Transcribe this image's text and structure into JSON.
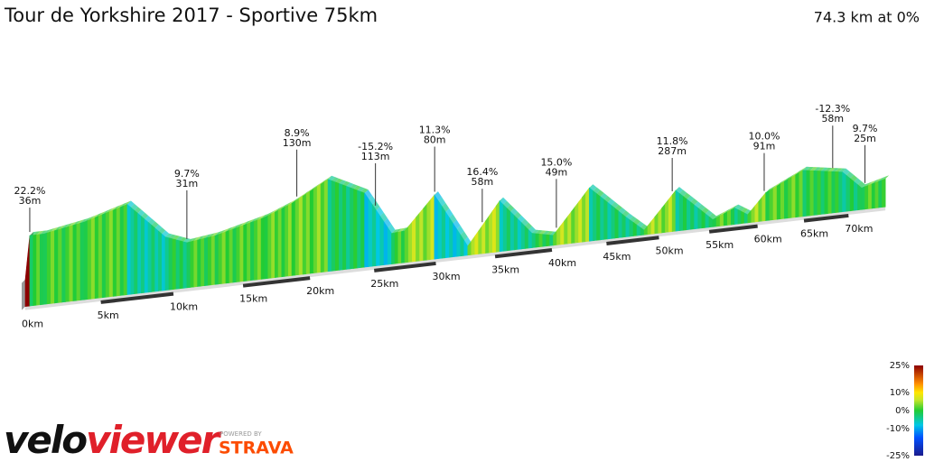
{
  "chart_data": {
    "type": "elevation-profile",
    "title": "Tour de Yorkshire 2017 - Sportive 75km",
    "summary": "74.3 km at 0%",
    "x": [
      0,
      0.29,
      1.18,
      3.87,
      6.8,
      9.43,
      10.95,
      12.96,
      16.59,
      18.62,
      21.38,
      24.24,
      26.39,
      27.45,
      29.88,
      32.67,
      35.39,
      38.23,
      40.12,
      43.4,
      46.82,
      48.57,
      51.64,
      55.35,
      57.6,
      58.97,
      60.86,
      64.88,
      69.3,
      71.5,
      74.3
    ],
    "values": [
      90,
      234,
      234,
      258,
      300,
      177,
      150,
      162,
      204,
      240,
      306,
      246,
      102,
      105,
      213,
      30,
      168,
      48,
      33,
      177,
      66,
      15,
      135,
      24,
      54,
      27,
      93,
      153,
      132,
      72,
      93
    ],
    "xlim": [
      0,
      74.3
    ],
    "ylim": [
      0,
      330
    ],
    "xticks": [
      {
        "value": 0,
        "label": "0km"
      },
      {
        "value": 5,
        "label": "5km"
      },
      {
        "value": 10,
        "label": "10km"
      },
      {
        "value": 15,
        "label": "15km"
      },
      {
        "value": 20,
        "label": "20km"
      },
      {
        "value": 25,
        "label": "25km"
      },
      {
        "value": 30,
        "label": "30km"
      },
      {
        "value": 35,
        "label": "35km"
      },
      {
        "value": 40,
        "label": "40km"
      },
      {
        "value": 45,
        "label": "45km"
      },
      {
        "value": 50,
        "label": "50km"
      },
      {
        "value": 55,
        "label": "55km"
      },
      {
        "value": 60,
        "label": "60km"
      },
      {
        "value": 65,
        "label": "65km"
      },
      {
        "value": 70,
        "label": "70km"
      }
    ],
    "annotations": [
      {
        "x": 0.29,
        "grade": "22.2%",
        "length": "36m"
      },
      {
        "x": 10.95,
        "grade": "9.7%",
        "length": "31m"
      },
      {
        "x": 19.0,
        "grade": "8.9%",
        "length": "130m"
      },
      {
        "x": 25.1,
        "grade": "-15.2%",
        "length": "113m"
      },
      {
        "x": 29.9,
        "grade": "11.3%",
        "length": "80m"
      },
      {
        "x": 33.9,
        "grade": "16.4%",
        "length": "58m"
      },
      {
        "x": 40.4,
        "grade": "15.0%",
        "length": "49m"
      },
      {
        "x": 51.3,
        "grade": "11.8%",
        "length": "287m"
      },
      {
        "x": 60.7,
        "grade": "10.0%",
        "length": "91m"
      },
      {
        "x": 68.2,
        "grade": "-12.3%",
        "length": "58m"
      },
      {
        "x": 71.9,
        "grade": "9.7%",
        "length": "25m"
      }
    ],
    "colorscale": [
      {
        "value": -25,
        "color": "#1a1a8c"
      },
      {
        "value": -15,
        "color": "#0050ff"
      },
      {
        "value": -8,
        "color": "#00c8e6"
      },
      {
        "value": 0,
        "color": "#22cc33"
      },
      {
        "value": 6,
        "color": "#c8e628"
      },
      {
        "value": 10,
        "color": "#ffe600"
      },
      {
        "value": 15,
        "color": "#ff8c00"
      },
      {
        "value": 25,
        "color": "#8c0000"
      }
    ],
    "colorbar_ticks": [
      {
        "value": 25,
        "label": "25%"
      },
      {
        "value": 10,
        "label": "10%"
      },
      {
        "value": 0,
        "label": "0%"
      },
      {
        "value": -10,
        "label": "-10%"
      },
      {
        "value": -25,
        "label": "-25%"
      }
    ]
  },
  "logo": {
    "brand_a": "velo",
    "brand_b": "viewer",
    "powered": "POWERED BY",
    "partner": "STRAVA"
  }
}
